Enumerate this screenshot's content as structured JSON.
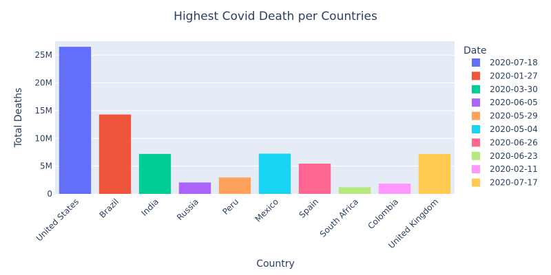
{
  "chart_data": {
    "type": "bar",
    "title": "Highest Covid Death per Countries",
    "xlabel": "Country",
    "ylabel": "Total Deaths",
    "ylim": [
      0,
      27500000
    ],
    "yticks": [
      {
        "value": 0,
        "label": "0"
      },
      {
        "value": 5000000,
        "label": "5M"
      },
      {
        "value": 10000000,
        "label": "10M"
      },
      {
        "value": 15000000,
        "label": "15M"
      },
      {
        "value": 20000000,
        "label": "20M"
      },
      {
        "value": 25000000,
        "label": "25M"
      }
    ],
    "categories": [
      "United States",
      "Brazil",
      "India",
      "Russia",
      "Peru",
      "Mexico",
      "Spain",
      "South Africa",
      "Colombia",
      "United Kingdom"
    ],
    "values": [
      26500000,
      14300000,
      7200000,
      2050000,
      2950000,
      7250000,
      5450000,
      1200000,
      1850000,
      7200000
    ],
    "series_names": [
      "2020-07-18",
      "2020-01-27",
      "2020-03-30",
      "2020-06-05",
      "2020-05-29",
      "2020-05-04",
      "2020-06-26",
      "2020-06-23",
      "2020-02-11",
      "2020-07-17"
    ],
    "colors": [
      "#636efa",
      "#EF553B",
      "#00cc96",
      "#ab63fa",
      "#FFA15A",
      "#19d3f3",
      "#FF6692",
      "#B6E880",
      "#FF97FF",
      "#FECB52"
    ],
    "legend": {
      "title": "Date",
      "position": "right"
    },
    "grid": true,
    "plot_background": "#e5ecf6"
  }
}
